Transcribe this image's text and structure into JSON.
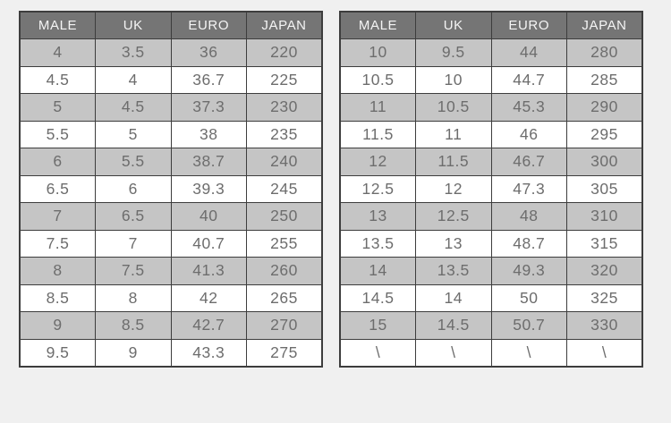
{
  "chart_data": [
    {
      "type": "table",
      "name": "mens-shoe-size-conversion-left",
      "columns": [
        "MALE",
        "UK",
        "EURO",
        "JAPAN"
      ],
      "rows": [
        [
          "4",
          "3.5",
          "36",
          "220"
        ],
        [
          "4.5",
          "4",
          "36.7",
          "225"
        ],
        [
          "5",
          "4.5",
          "37.3",
          "230"
        ],
        [
          "5.5",
          "5",
          "38",
          "235"
        ],
        [
          "6",
          "5.5",
          "38.7",
          "240"
        ],
        [
          "6.5",
          "6",
          "39.3",
          "245"
        ],
        [
          "7",
          "6.5",
          "40",
          "250"
        ],
        [
          "7.5",
          "7",
          "40.7",
          "255"
        ],
        [
          "8",
          "7.5",
          "41.3",
          "260"
        ],
        [
          "8.5",
          "8",
          "42",
          "265"
        ],
        [
          "9",
          "8.5",
          "42.7",
          "270"
        ],
        [
          "9.5",
          "9",
          "43.3",
          "275"
        ]
      ]
    },
    {
      "type": "table",
      "name": "mens-shoe-size-conversion-right",
      "columns": [
        "MALE",
        "UK",
        "EURO",
        "JAPAN"
      ],
      "rows": [
        [
          "10",
          "9.5",
          "44",
          "280"
        ],
        [
          "10.5",
          "10",
          "44.7",
          "285"
        ],
        [
          "11",
          "10.5",
          "45.3",
          "290"
        ],
        [
          "11.5",
          "11",
          "46",
          "295"
        ],
        [
          "12",
          "11.5",
          "46.7",
          "300"
        ],
        [
          "12.5",
          "12",
          "47.3",
          "305"
        ],
        [
          "13",
          "12.5",
          "48",
          "310"
        ],
        [
          "13.5",
          "13",
          "48.7",
          "315"
        ],
        [
          "14",
          "13.5",
          "49.3",
          "320"
        ],
        [
          "14.5",
          "14",
          "50",
          "325"
        ],
        [
          "15",
          "14.5",
          "50.7",
          "330"
        ],
        [
          "\\",
          "\\",
          "\\",
          "\\"
        ]
      ]
    }
  ],
  "colors": {
    "page_bg": "#f0f0f0",
    "header_bg": "#757575",
    "header_text": "#f4f4f4",
    "row_bg": "#ffffff",
    "row_alt_bg": "#c5c5c5",
    "cell_text": "#6d6d6d",
    "border": "#3d3d3d"
  }
}
